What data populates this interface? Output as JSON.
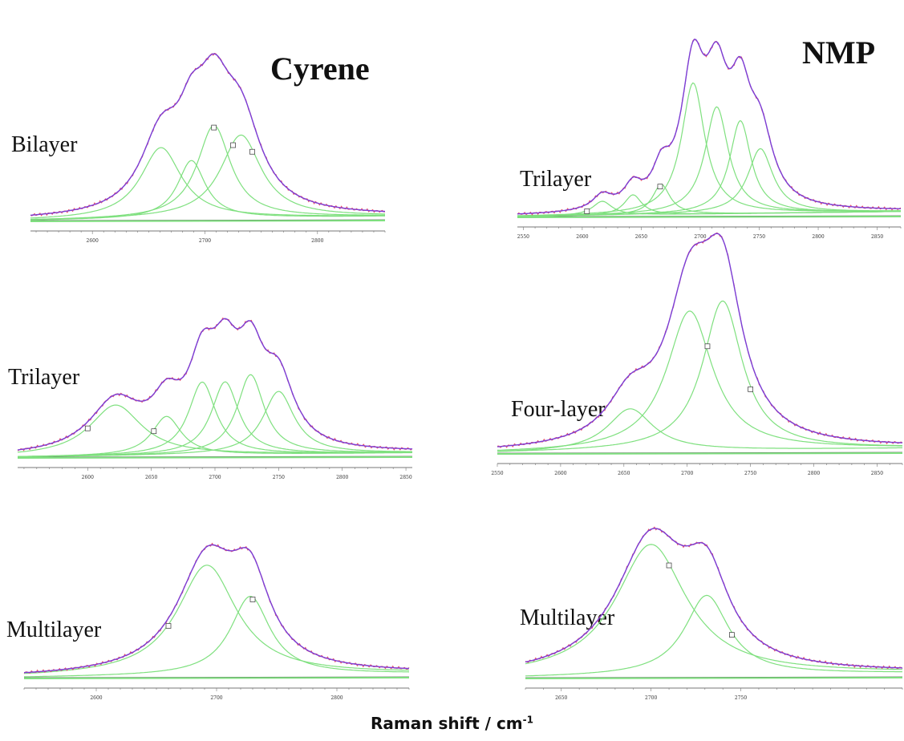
{
  "solvents": {
    "left": "Cyrene",
    "right": "NMP"
  },
  "xlabel": {
    "text": "Raman shift / cm",
    "exponent": "-1"
  },
  "colors": {
    "fit_envelope": "#7b3fd6",
    "measured": "#e8506a",
    "component": "#7fe07f",
    "baseline": "#555555"
  },
  "chart_data": [
    {
      "type": "line",
      "solvent": "Cyrene",
      "layer_label": "Bilayer",
      "xlim": [
        2545,
        2860
      ],
      "ticks": [
        2600,
        2700,
        2800
      ],
      "components": [
        {
          "center": 2661,
          "height": 0.43,
          "width": 22
        },
        {
          "center": 2688,
          "height": 0.35,
          "width": 15
        },
        {
          "center": 2708,
          "height": 0.56,
          "width": 18
        },
        {
          "center": 2732,
          "height": 0.5,
          "width": 22
        }
      ],
      "peak_markers": [
        2708,
        2725,
        2742
      ]
    },
    {
      "type": "line",
      "solvent": "Cyrene",
      "layer_label": "Trilayer",
      "xlim": [
        2545,
        2855
      ],
      "ticks": [
        2600,
        2650,
        2700,
        2750,
        2800,
        2850
      ],
      "components": [
        {
          "center": 2622,
          "height": 0.3,
          "width": 25
        },
        {
          "center": 2662,
          "height": 0.23,
          "width": 14
        },
        {
          "center": 2690,
          "height": 0.43,
          "width": 13
        },
        {
          "center": 2708,
          "height": 0.43,
          "width": 13
        },
        {
          "center": 2728,
          "height": 0.47,
          "width": 13
        },
        {
          "center": 2750,
          "height": 0.37,
          "width": 15
        }
      ],
      "peak_markers": [
        2600,
        2652
      ]
    },
    {
      "type": "line",
      "solvent": "Cyrene",
      "layer_label": "Multilayer",
      "xlim": [
        2540,
        2860
      ],
      "ticks": [
        2600,
        2700,
        2800
      ],
      "components": [
        {
          "center": 2692,
          "height": 0.7,
          "width": 30
        },
        {
          "center": 2728,
          "height": 0.5,
          "width": 20
        }
      ],
      "peak_markers": [
        2660,
        2730
      ]
    },
    {
      "type": "line",
      "solvent": "NMP",
      "layer_label": "Trilayer",
      "xlim": [
        2545,
        2870
      ],
      "ticks": [
        2550,
        2600,
        2650,
        2700,
        2750,
        2800,
        2850
      ],
      "components": [
        {
          "center": 2617,
          "height": 0.07,
          "width": 10
        },
        {
          "center": 2643,
          "height": 0.1,
          "width": 9
        },
        {
          "center": 2667,
          "height": 0.15,
          "width": 9
        },
        {
          "center": 2694,
          "height": 0.65,
          "width": 12
        },
        {
          "center": 2714,
          "height": 0.53,
          "width": 12
        },
        {
          "center": 2734,
          "height": 0.46,
          "width": 11
        },
        {
          "center": 2751,
          "height": 0.32,
          "width": 13
        }
      ],
      "peak_markers": [
        2604,
        2666
      ]
    },
    {
      "type": "line",
      "solvent": "NMP",
      "layer_label": "Four-layer",
      "xlim": [
        2550,
        2870
      ],
      "ticks": [
        2550,
        2600,
        2650,
        2700,
        2750,
        2800,
        2850
      ],
      "components": [
        {
          "center": 2655,
          "height": 0.22,
          "width": 22
        },
        {
          "center": 2702,
          "height": 0.72,
          "width": 22
        },
        {
          "center": 2728,
          "height": 0.77,
          "width": 19
        }
      ],
      "peak_markers": [
        2716,
        2750
      ]
    },
    {
      "type": "line",
      "solvent": "NMP",
      "layer_label": "Multilayer",
      "xlim": [
        2630,
        2840
      ],
      "ticks": [
        2650,
        2700,
        2750
      ],
      "components": [
        {
          "center": 2700,
          "height": 0.74,
          "width": 24
        },
        {
          "center": 2731,
          "height": 0.45,
          "width": 15
        }
      ],
      "peak_markers": [
        2710,
        2745
      ]
    }
  ]
}
